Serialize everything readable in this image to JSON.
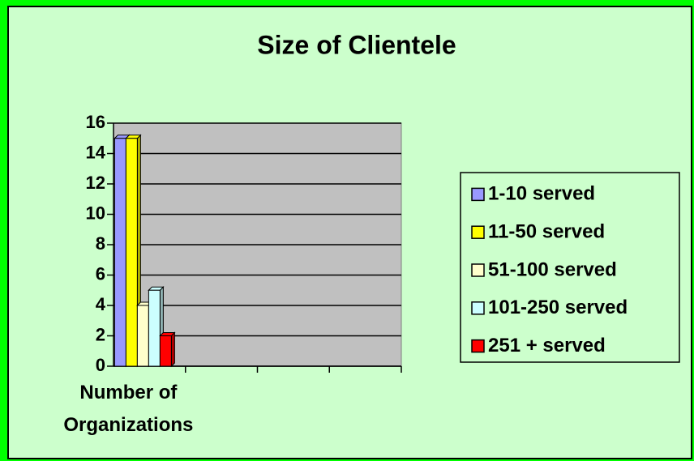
{
  "chart_data": {
    "type": "bar",
    "title": "Size of Clientele",
    "categories": [
      "Number of Organizations",
      null,
      null,
      null
    ],
    "series": [
      {
        "name": "1-10 served",
        "color": "#9999ff",
        "values": [
          15,
          null,
          null,
          null
        ]
      },
      {
        "name": "11-50 served",
        "color": "#ffff00",
        "values": [
          15,
          null,
          null,
          null
        ]
      },
      {
        "name": "51-100 served",
        "color": "#ffffcc",
        "values": [
          4,
          null,
          null,
          null
        ]
      },
      {
        "name": "101-250 served",
        "color": "#ccffff",
        "values": [
          5,
          null,
          null,
          null
        ]
      },
      {
        "name": "251 + served",
        "color": "#ff0000",
        "values": [
          2,
          null,
          null,
          null
        ]
      }
    ],
    "ylim": [
      0,
      16
    ],
    "yticks": [
      0,
      2,
      4,
      6,
      8,
      10,
      12,
      14,
      16
    ],
    "grid": true,
    "legend": "right"
  }
}
